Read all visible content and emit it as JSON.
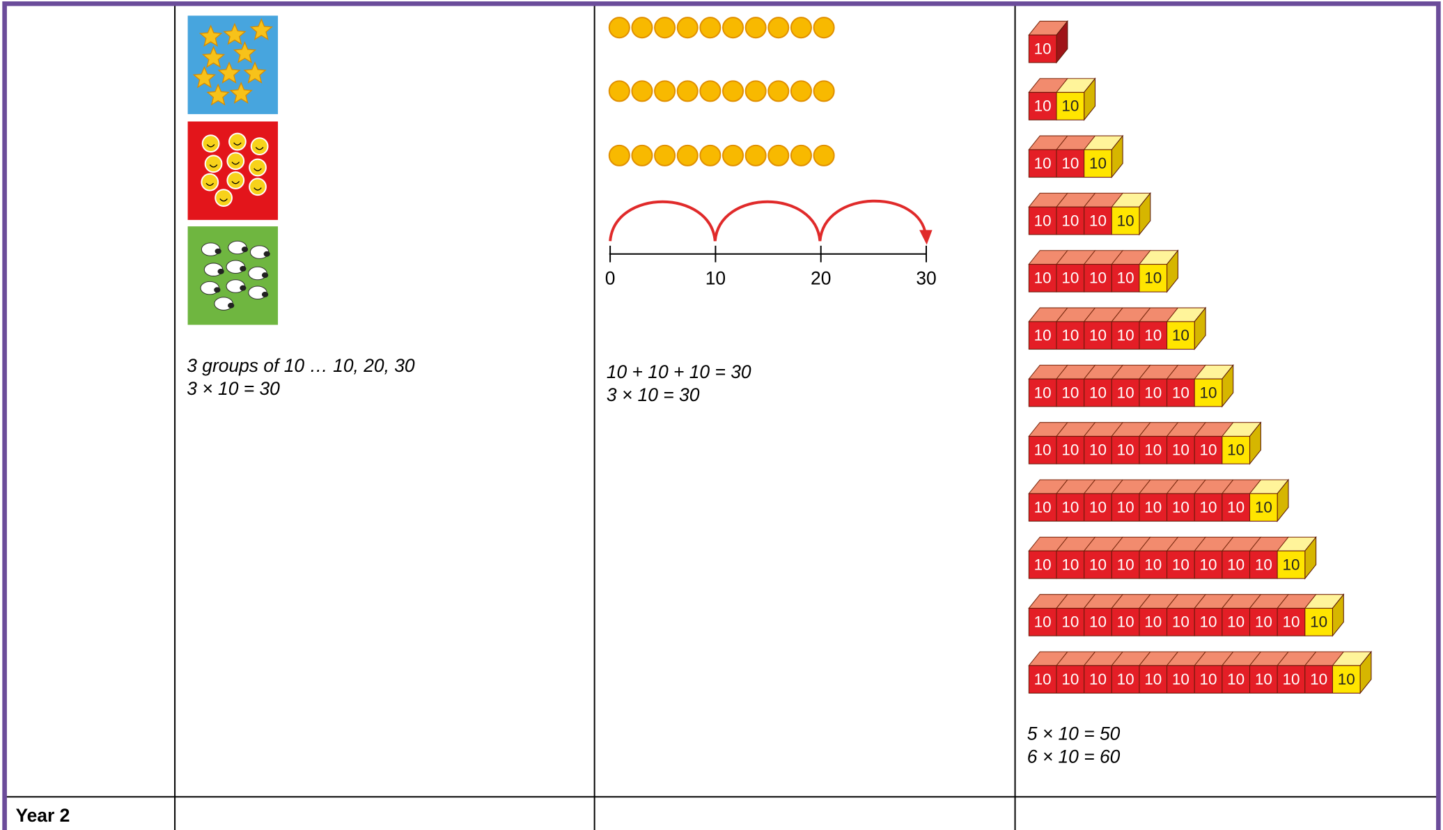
{
  "table": {
    "row_1": {
      "pictures": {
        "captions": [
          "3 groups of 10 … 10, 20, 30",
          "3 × 10 = 30"
        ]
      },
      "number_line": {
        "labels": [
          "0",
          "10",
          "20",
          "30"
        ],
        "captions": [
          "10 + 10 + 10 = 30",
          "3 × 10 = 30"
        ]
      },
      "cubes": {
        "label": "10",
        "captions": [
          "5 × 10 = 50",
          "6 × 10 = 60"
        ]
      }
    },
    "row_2": {
      "heading": "Year 2"
    }
  }
}
